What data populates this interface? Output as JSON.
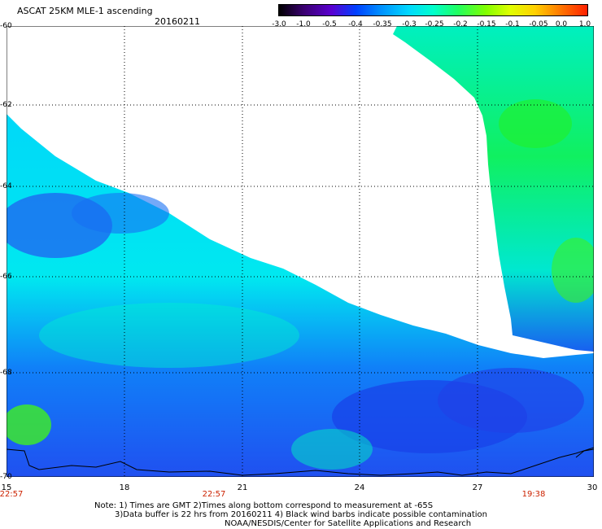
{
  "header": {
    "title": "ASCAT 25KM MLE-1 ascending",
    "date": "20160211"
  },
  "colorbar": {
    "labels": [
      "-3.0",
      "-1.0",
      "-0.5",
      "-0.4",
      "-0.35",
      "-0.3",
      "-0.25",
      "-0.2",
      "-0.15",
      "-0.1",
      "-0.05",
      "0.0",
      "1.0"
    ],
    "colors": [
      "#000000",
      "#3a0070",
      "#5a00d0",
      "#0040ff",
      "#0090ff",
      "#00d8ff",
      "#00ffcc",
      "#20ff60",
      "#80ff00",
      "#e0ff00",
      "#ffd000",
      "#ff7000",
      "#ff2000"
    ]
  },
  "axes": {
    "lat_labels": [
      "-60",
      "-62",
      "-64",
      "-66",
      "-68",
      "-70"
    ],
    "lon_labels": [
      "15",
      "18",
      "21",
      "24",
      "27",
      "30"
    ]
  },
  "time_labels": [
    "22:57",
    "22:57",
    "19:38"
  ],
  "notes": [
    "Note: 1) Times are GMT 2)Times along bottom correspond to measurement at -65S",
    "3)Data buffer is 22 hrs from 20160211 4) Black wind barbs indicate possible contamination",
    "NOAA/NESDIS/Center for Satellite Applications and Research"
  ],
  "colors": {
    "deep_blue": "#1a3cf0",
    "cyan": "#00e8f0",
    "green": "#20f040",
    "time_red": "#cc2200"
  }
}
